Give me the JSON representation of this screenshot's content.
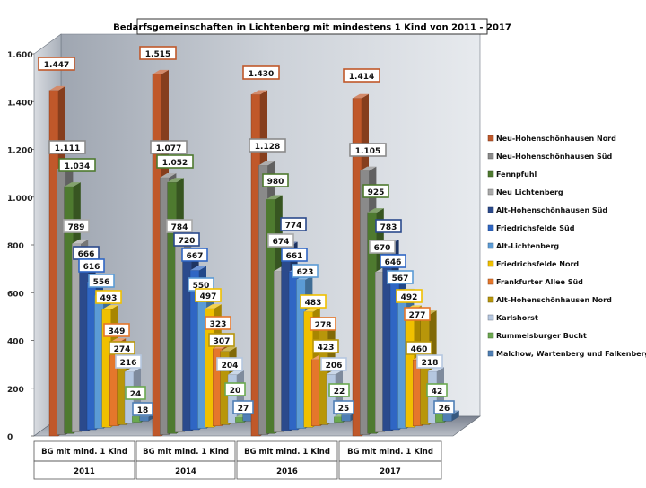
{
  "chart_data": {
    "type": "bar",
    "title": "Bedarfsgemeinschaften in Lichtenberg mit mindestens 1 Kind von 2011 - 2017",
    "categories": [
      "BG mit mind. 1 Kind",
      "BG mit mind. 1 Kind",
      "BG mit mind. 1 Kind",
      "BG mit mind. 1 Kind"
    ],
    "years": [
      "2011",
      "2014",
      "2016",
      "2017"
    ],
    "ylim": [
      0,
      1600
    ],
    "yticks": [
      0,
      200,
      400,
      600,
      800,
      1000,
      1200,
      1400,
      1600
    ],
    "ytick_labels": [
      "0",
      "200",
      "400",
      "600",
      "800",
      "1.000",
      "1.200",
      "1.400",
      "1.600"
    ],
    "grid": false,
    "legend_position": "right",
    "series": [
      {
        "name": "Neu-Hohenschönhausen Nord",
        "color": "#c0582a",
        "values": [
          1447,
          1515,
          1430,
          1414
        ],
        "labels": [
          "1.447",
          "1.515",
          "1.430",
          "1.414"
        ]
      },
      {
        "name": "Neu-Hohenschönhausen Süd",
        "color": "#8a8a8a",
        "values": [
          1111,
          1077,
          1128,
          1105
        ],
        "labels": [
          "1.111",
          "1.077",
          "1.128",
          "1.105"
        ]
      },
      {
        "name": "Fennpfuhl",
        "color": "#4e7a2f",
        "values": [
          1034,
          1052,
          980,
          925
        ],
        "labels": [
          "1.034",
          "1.052",
          "980",
          "925"
        ]
      },
      {
        "name": "Neu Lichtenberg",
        "color": "#a9a9a9",
        "values": [
          789,
          784,
          674,
          670
        ],
        "labels": [
          "789",
          "784",
          "674",
          "670"
        ]
      },
      {
        "name": "Alt-Hohenschönhausen Süd",
        "color": "#2b4a8c",
        "values": [
          666,
          720,
          774,
          783
        ],
        "labels": [
          "666",
          "720",
          "774",
          "783"
        ]
      },
      {
        "name": "Friedrichsfelde Süd",
        "color": "#2f66c4",
        "values": [
          616,
          667,
          661,
          646
        ],
        "labels": [
          "616",
          "667",
          "661",
          "646"
        ]
      },
      {
        "name": "Alt-Lichtenberg",
        "color": "#5b9bd5",
        "values": [
          556,
          550,
          623,
          567
        ],
        "labels": [
          "556",
          "550",
          "623",
          "567"
        ]
      },
      {
        "name": "Friedrichsfelde Nord",
        "color": "#f0c000",
        "values": [
          493,
          497,
          483,
          492
        ],
        "labels": [
          "493",
          "497",
          "483",
          "492"
        ]
      },
      {
        "name": "Frankfurter Allee Süd",
        "color": "#e5772b",
        "values": [
          349,
          323,
          278,
          277
        ],
        "labels": [
          "349",
          "323",
          "278",
          "277"
        ]
      },
      {
        "name": "Alt-Hohenschönhausen Nord",
        "color": "#b8960a",
        "values": [
          274,
          307,
          423,
          460
        ],
        "labels": [
          "274",
          "307",
          "423",
          "460"
        ]
      },
      {
        "name": "Karlshorst",
        "color": "#b5c7e0",
        "values": [
          216,
          204,
          206,
          218
        ],
        "labels": [
          "216",
          "204",
          "206",
          "218"
        ]
      },
      {
        "name": "Rummelsburger Bucht",
        "color": "#6aa84f",
        "values": [
          24,
          20,
          22,
          42
        ],
        "labels": [
          "24",
          "20",
          "22",
          "42"
        ]
      },
      {
        "name": "Malchow, Wartenberg und Falkenberg",
        "color": "#4f7fb5",
        "values": [
          18,
          27,
          25,
          26
        ],
        "labels": [
          "18",
          "27",
          "25",
          "26"
        ]
      }
    ]
  }
}
